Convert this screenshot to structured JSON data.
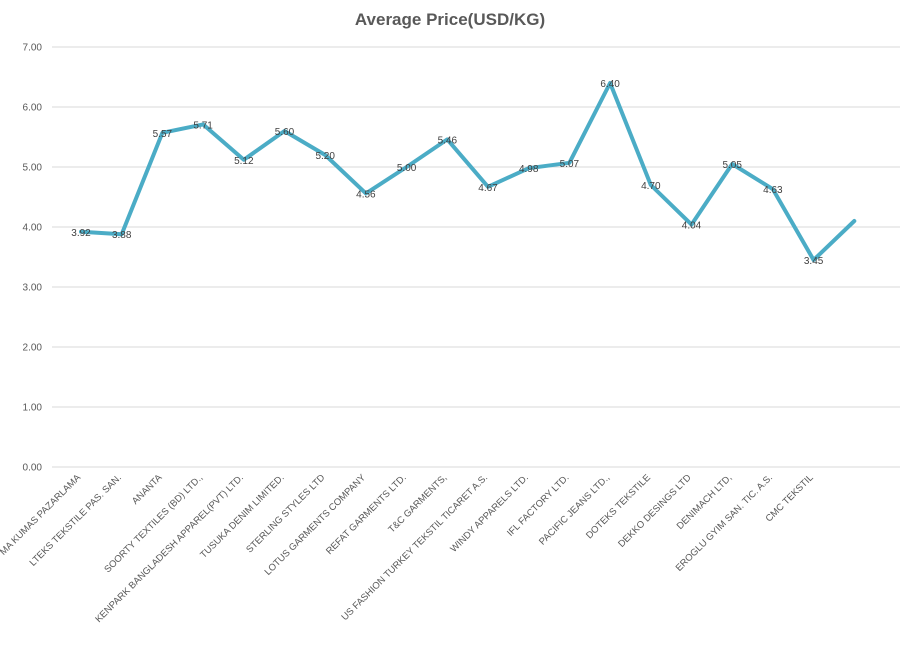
{
  "chart_data": {
    "type": "line",
    "title": "Average Price(USD/KG)",
    "xlabel": "",
    "ylabel": "",
    "ylim": [
      0,
      7
    ],
    "yticks": [
      "0.00",
      "1.00",
      "2.00",
      "3.00",
      "4.00",
      "5.00",
      "6.00",
      "7.00"
    ],
    "grid": true,
    "legend": "none",
    "line_color": "#4bacc6",
    "categories": [
      "MA KUMAS PAZARLAMA",
      "LTEKS TEKSTILE PAS. SAN.",
      "ANANTA",
      "SOORTY TEXTILES (BD) LTD.,",
      "KENPARK BANGLADESH APPAREL(PVT) LTD.",
      "TUSUKA DENIM LIMITED.",
      "STERLING STYLES LTD",
      "LOTUS GARMENTS COMPANY",
      "REFAT GARMENTS LTD.",
      "T&C GARMENTS,",
      "US FASHION TURKEY TEKSTIL TICARET A.S.",
      "WINDY APPARELS LTD.",
      "IFL FACTORY LTD.",
      "PACIFIC JEANS LTD.,",
      "DOTEKS TEKSTILE",
      "DEKKO DESINGS LTD",
      "DENIMACH LTD,",
      "EROGLU GYIM SAN. TIC. A.S.",
      "CMC TEKSTIL",
      ""
    ],
    "values": [
      3.92,
      3.88,
      5.57,
      5.71,
      5.12,
      5.6,
      5.2,
      4.56,
      5.0,
      5.46,
      4.67,
      4.98,
      5.07,
      6.4,
      4.7,
      4.04,
      5.05,
      4.63,
      3.45,
      4.1
    ],
    "data_labels": [
      "3.92",
      "3.88",
      "5.57",
      "5.71",
      "5.12",
      "5.60",
      "5.20",
      "4.56",
      "5.00",
      "5.46",
      "4.67",
      "4.98",
      "5.07",
      "6.40",
      "4.70",
      "4.04",
      "5.05",
      "4.63",
      "3.45",
      ""
    ]
  }
}
